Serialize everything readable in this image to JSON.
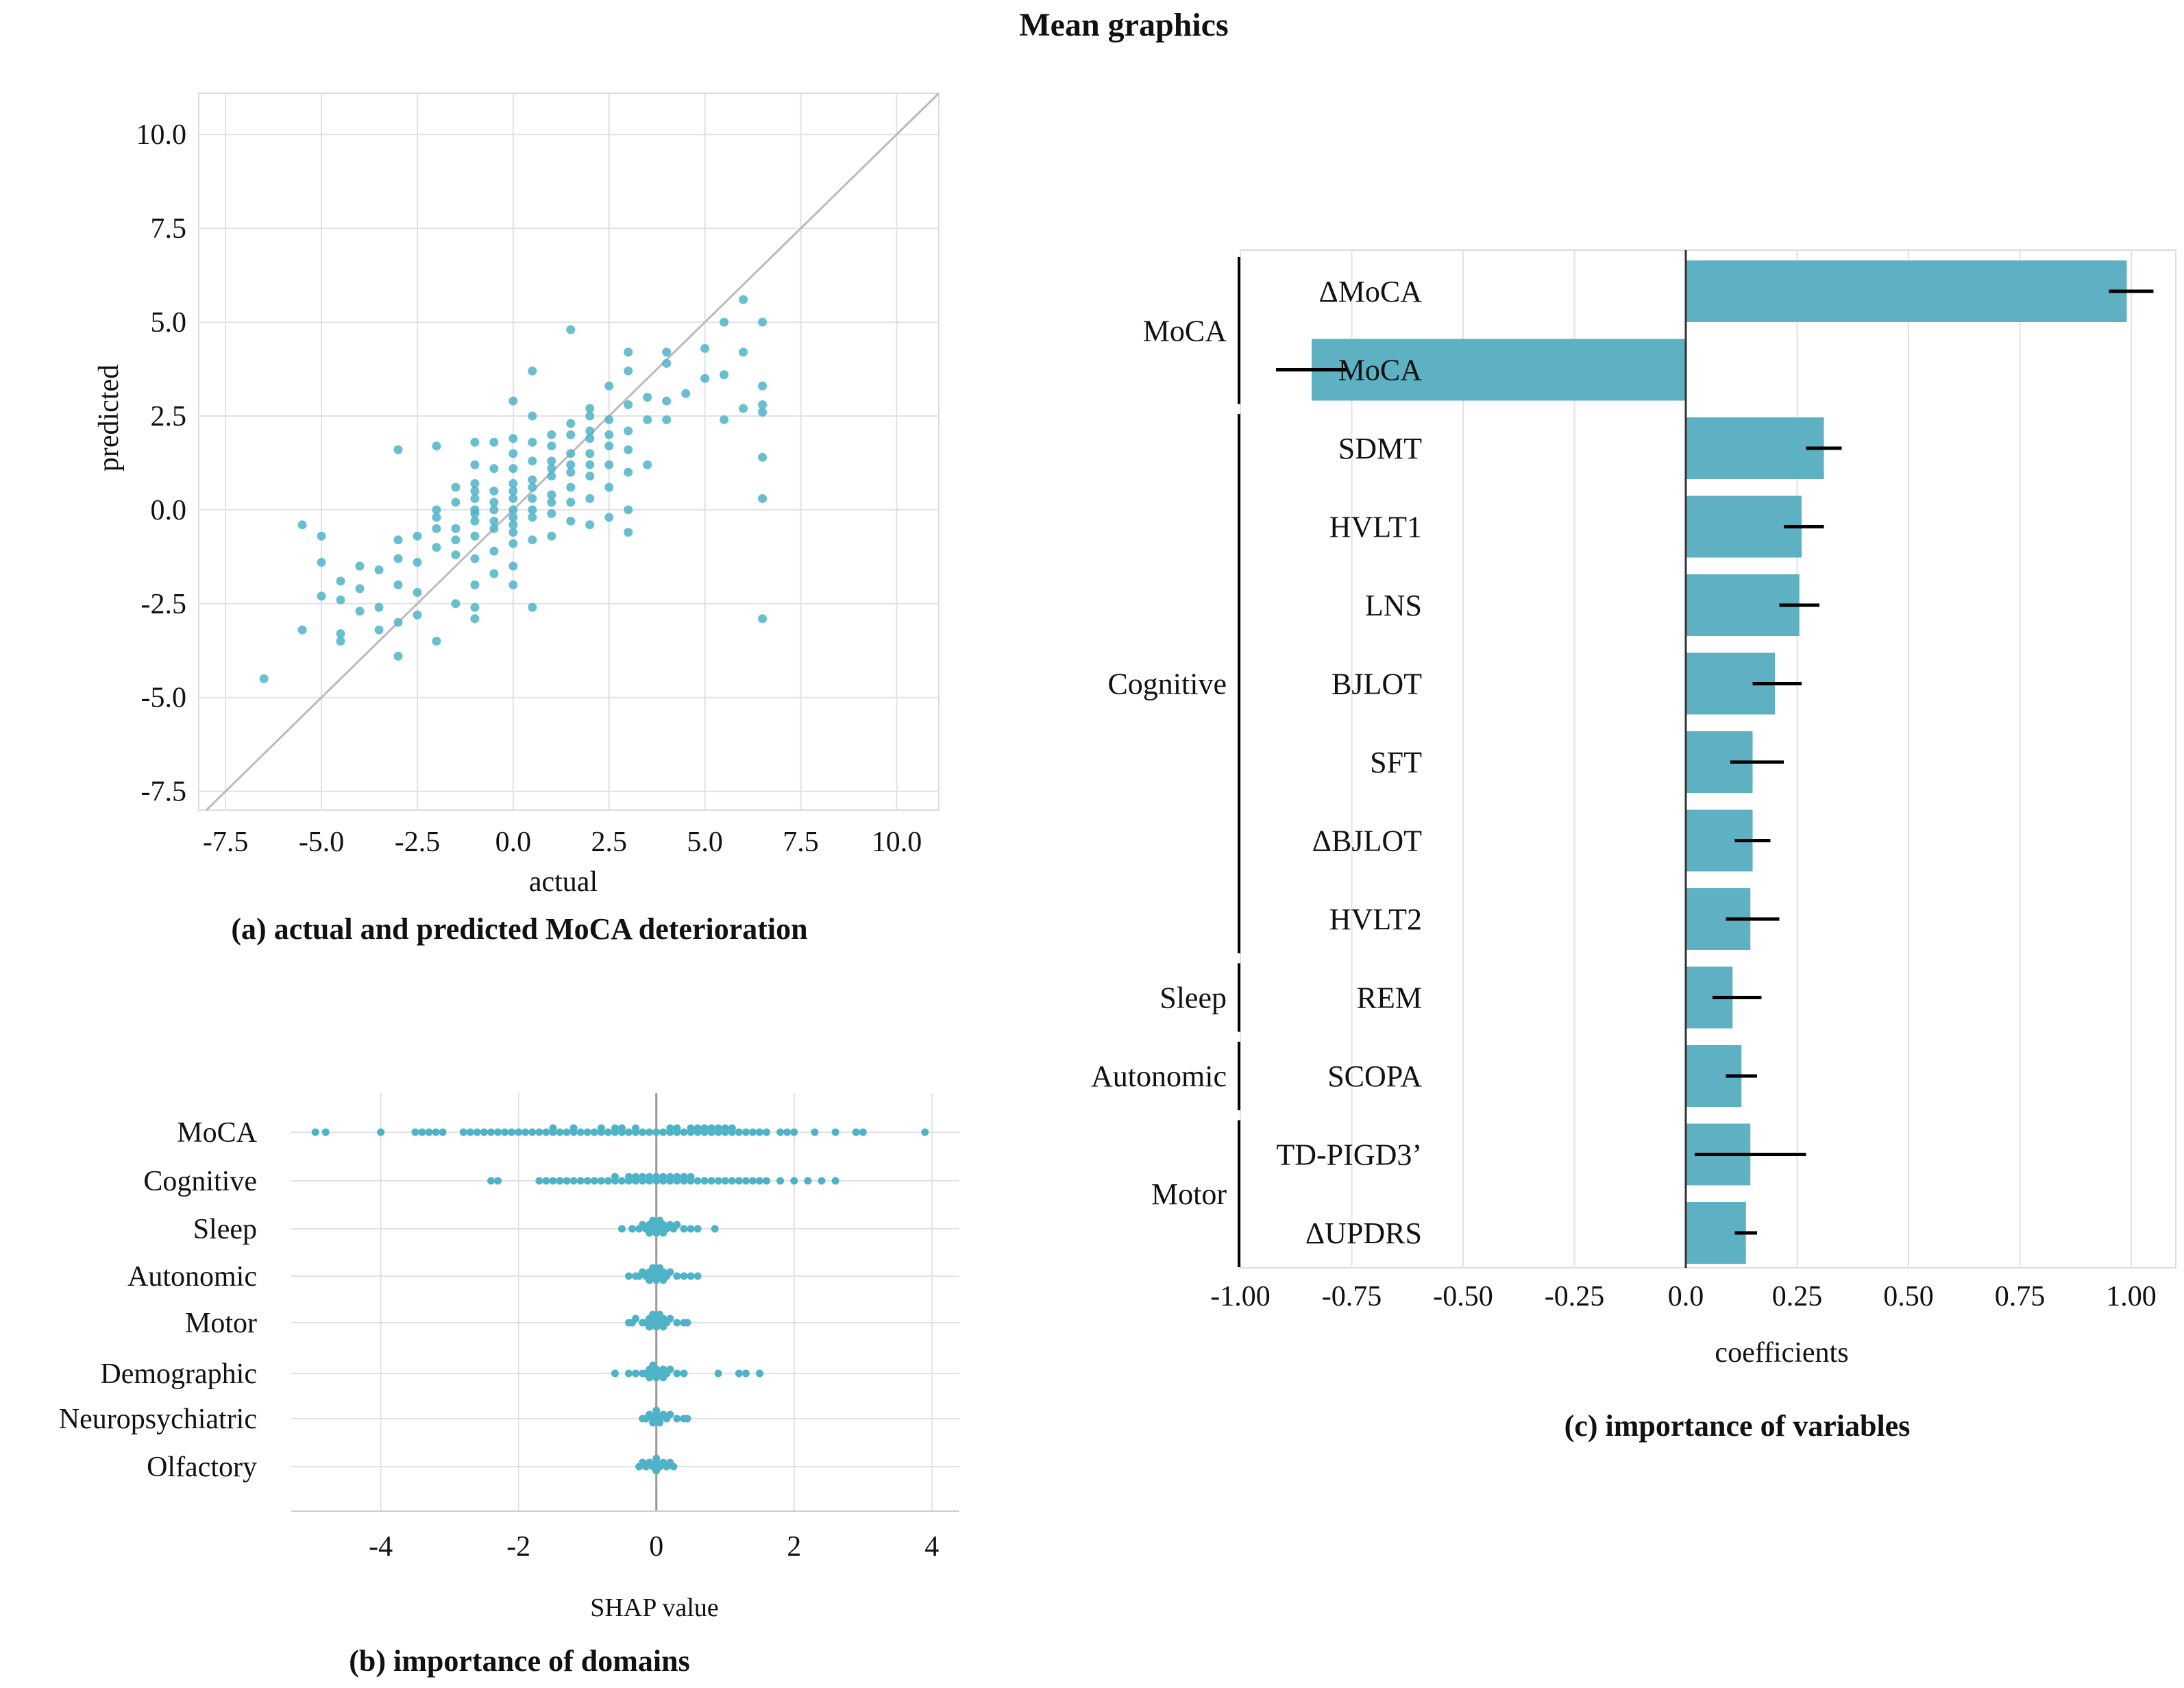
{
  "figure_title": "Mean graphics",
  "chart_data": [
    {
      "id": "a",
      "type": "scatter",
      "caption": "(a) actual and predicted MoCA deterioration",
      "xlabel": "actual",
      "ylabel": "predicted",
      "xlim": [
        -8.2,
        11.1
      ],
      "ylim": [
        -8.0,
        11.1
      ],
      "xticks": [
        "-7.5",
        "-5.0",
        "-2.5",
        "0.0",
        "2.5",
        "5.0",
        "7.5",
        "10.0"
      ],
      "yticks": [
        "-7.5",
        "-5.0",
        "-2.5",
        "0.0",
        "2.5",
        "5.0",
        "7.5",
        "10.0"
      ],
      "grid": true,
      "reference_line": "y = x",
      "color": "#4fb3c8",
      "points": [
        [
          -6.5,
          -4.5
        ],
        [
          -5.5,
          -3.2
        ],
        [
          -5.5,
          -0.4
        ],
        [
          -5,
          -0.7
        ],
        [
          -5,
          -1.4
        ],
        [
          -5,
          -2.3
        ],
        [
          -4.5,
          -2.4
        ],
        [
          -4.5,
          -3.3
        ],
        [
          -4.5,
          -3.5
        ],
        [
          -4.5,
          -1.9
        ],
        [
          -4,
          -1.5
        ],
        [
          -4,
          -2.1
        ],
        [
          -4,
          -2.7
        ],
        [
          -3.5,
          -1.6
        ],
        [
          -3.5,
          -2.6
        ],
        [
          -3.5,
          -3.2
        ],
        [
          -3,
          -2.0
        ],
        [
          -3,
          -3.0
        ],
        [
          -3,
          -3.9
        ],
        [
          -3,
          1.6
        ],
        [
          -3,
          -1.3
        ],
        [
          -3,
          -0.8
        ],
        [
          -2.5,
          -2.2
        ],
        [
          -2.5,
          -1.4
        ],
        [
          -2.5,
          -2.8
        ],
        [
          -2,
          -3.5
        ],
        [
          -2,
          0.0
        ],
        [
          -2,
          -0.5
        ],
        [
          -2,
          -1.0
        ],
        [
          -2,
          1.7
        ],
        [
          -1.5,
          0.6
        ],
        [
          -1.5,
          -0.5
        ],
        [
          -1.5,
          -1.2
        ],
        [
          -1.5,
          -2.5
        ],
        [
          -1.5,
          0.2
        ],
        [
          -1,
          0.0
        ],
        [
          -1,
          0.3
        ],
        [
          -1,
          0.7
        ],
        [
          -1,
          -0.3
        ],
        [
          -1,
          -0.7
        ],
        [
          -1,
          -1.3
        ],
        [
          -1,
          -2.0
        ],
        [
          -1,
          -2.6
        ],
        [
          -1,
          -2.9
        ],
        [
          -1,
          1.2
        ],
        [
          -1,
          1.8
        ],
        [
          -0.5,
          0.5
        ],
        [
          -0.5,
          0.0
        ],
        [
          -0.5,
          -0.5
        ],
        [
          -0.5,
          -1.1
        ],
        [
          -0.5,
          1.1
        ],
        [
          -0.5,
          1.8
        ],
        [
          -0.5,
          -1.7
        ],
        [
          0,
          0.0
        ],
        [
          0,
          0.3
        ],
        [
          0,
          0.7
        ],
        [
          0,
          1.1
        ],
        [
          0,
          1.5
        ],
        [
          0,
          -0.4
        ],
        [
          0,
          -0.9
        ],
        [
          0,
          -1.5
        ],
        [
          0,
          -2.0
        ],
        [
          0,
          2.9
        ],
        [
          0,
          -0.2
        ],
        [
          0.5,
          0.3
        ],
        [
          0.5,
          -0.2
        ],
        [
          0.5,
          0.8
        ],
        [
          0.5,
          1.3
        ],
        [
          0.5,
          -0.8
        ],
        [
          0.5,
          2.5
        ],
        [
          0.5,
          3.7
        ],
        [
          0.5,
          -2.6
        ],
        [
          0.5,
          0.0
        ],
        [
          1,
          0.4
        ],
        [
          1,
          0.9
        ],
        [
          1,
          1.3
        ],
        [
          1,
          -0.1
        ],
        [
          1,
          2.0
        ],
        [
          1,
          -0.7
        ],
        [
          1,
          1.7
        ],
        [
          1.5,
          0.6
        ],
        [
          1.5,
          1.0
        ],
        [
          1.5,
          1.5
        ],
        [
          1.5,
          2.3
        ],
        [
          1.5,
          -0.3
        ],
        [
          1.5,
          4.8
        ],
        [
          1.5,
          0.2
        ],
        [
          2,
          0.9
        ],
        [
          2,
          1.5
        ],
        [
          2,
          2.1
        ],
        [
          2,
          2.7
        ],
        [
          2,
          0.3
        ],
        [
          2,
          -0.4
        ],
        [
          2,
          1.2
        ],
        [
          2.5,
          1.2
        ],
        [
          2.5,
          1.7
        ],
        [
          2.5,
          2.4
        ],
        [
          2.5,
          3.3
        ],
        [
          2.5,
          0.6
        ],
        [
          2.5,
          -0.2
        ],
        [
          3,
          1.6
        ],
        [
          3,
          2.1
        ],
        [
          3,
          2.8
        ],
        [
          3,
          3.7
        ],
        [
          3,
          4.2
        ],
        [
          3,
          0.0
        ],
        [
          3,
          -0.6
        ],
        [
          3.5,
          1.2
        ],
        [
          3.5,
          2.4
        ],
        [
          3.5,
          3.0
        ],
        [
          4,
          2.4
        ],
        [
          4,
          3.9
        ],
        [
          4,
          4.2
        ],
        [
          4,
          2.9
        ],
        [
          4.5,
          3.1
        ],
        [
          5,
          3.5
        ],
        [
          5,
          4.3
        ],
        [
          5.5,
          2.4
        ],
        [
          5.5,
          3.6
        ],
        [
          6,
          2.7
        ],
        [
          6,
          4.2
        ],
        [
          6,
          5.6
        ],
        [
          6.5,
          5.0
        ],
        [
          6.5,
          3.3
        ],
        [
          6.5,
          2.8
        ],
        [
          6.5,
          1.4
        ],
        [
          6.5,
          0.3
        ],
        [
          6.5,
          -2.9
        ],
        [
          5.5,
          5.0
        ],
        [
          6.5,
          2.6
        ],
        [
          -0.5,
          0.2
        ],
        [
          0,
          0.5
        ],
        [
          0.5,
          0.6
        ],
        [
          1,
          1.1
        ],
        [
          -1,
          -0.1
        ],
        [
          2,
          1.9
        ],
        [
          1.5,
          1.2
        ],
        [
          -2,
          -0.2
        ],
        [
          -0.5,
          -0.3
        ],
        [
          0,
          -0.6
        ],
        [
          1,
          0.2
        ],
        [
          2.5,
          2.0
        ],
        [
          3,
          1.0
        ],
        [
          -1.5,
          -0.8
        ],
        [
          -2.5,
          -0.7
        ],
        [
          0.5,
          1.8
        ],
        [
          1.5,
          2.0
        ],
        [
          2,
          2.5
        ],
        [
          -1,
          0.5
        ],
        [
          0,
          1.9
        ]
      ]
    },
    {
      "id": "b",
      "type": "scatter",
      "subtype": "beeswarm",
      "caption": "(b) importance of domains",
      "xlabel": "SHAP value",
      "xlim": [
        -5.3,
        4.4
      ],
      "xticks": [
        -4,
        -2,
        0,
        2,
        4
      ],
      "xtick_labels": [
        "-4",
        "-2",
        "0",
        "2",
        "4"
      ],
      "grid": true,
      "color": "#4fb3c8",
      "domains": [
        {
          "name": "MoCA",
          "values": [
            -4.95,
            -4.8,
            -4.0,
            -3.5,
            -3.4,
            -3.3,
            -3.2,
            -3.1,
            -2.8,
            -2.7,
            -2.6,
            -2.5,
            -2.4,
            -2.3,
            -2.2,
            -2.1,
            -2.0,
            -1.9,
            -1.8,
            -1.7,
            -1.6,
            -1.5,
            -1.4,
            -1.3,
            -1.2,
            -1.1,
            -1.0,
            -0.9,
            -0.8,
            -0.7,
            -0.6,
            -0.5,
            -0.4,
            -0.3,
            -0.2,
            -0.1,
            0.0,
            0.1,
            0.2,
            0.3,
            0.4,
            0.5,
            0.6,
            0.7,
            0.8,
            0.9,
            1.0,
            1.1,
            1.2,
            1.3,
            1.4,
            1.5,
            1.6,
            1.8,
            1.9,
            2.0,
            2.3,
            2.6,
            2.9,
            3.0,
            3.9,
            -1.5,
            -1.2,
            -0.6,
            -0.3,
            0.3,
            0.5,
            0.7,
            0.8,
            0.9,
            1.0,
            1.1,
            -0.8,
            -0.5,
            0.2,
            0.6
          ]
        },
        {
          "name": "Cognitive",
          "values": [
            -2.4,
            -2.3,
            -1.7,
            -1.6,
            -1.5,
            -1.4,
            -1.3,
            -1.2,
            -1.1,
            -1.0,
            -0.9,
            -0.8,
            -0.7,
            -0.6,
            -0.5,
            -0.4,
            -0.3,
            -0.2,
            -0.1,
            0.0,
            0.1,
            0.2,
            0.3,
            0.4,
            0.5,
            0.6,
            0.7,
            0.8,
            0.9,
            1.0,
            1.1,
            1.2,
            1.3,
            1.4,
            1.5,
            1.6,
            1.8,
            2.0,
            2.2,
            2.4,
            2.6,
            -0.6,
            -0.4,
            -0.2,
            0.0,
            0.2,
            0.4,
            -0.3,
            0.1,
            0.3,
            0.5,
            -0.1
          ]
        },
        {
          "name": "Sleep",
          "values": [
            -0.5,
            -0.35,
            -0.25,
            -0.2,
            -0.15,
            -0.1,
            -0.05,
            0.0,
            0.05,
            0.1,
            0.15,
            0.2,
            0.25,
            0.3,
            0.4,
            0.5,
            0.6,
            0.85,
            -0.1,
            0.0,
            0.1,
            -0.05,
            0.05
          ]
        },
        {
          "name": "Autonomic",
          "values": [
            -0.4,
            -0.3,
            -0.25,
            -0.2,
            -0.15,
            -0.1,
            -0.05,
            0.0,
            0.05,
            0.1,
            0.15,
            0.2,
            0.3,
            0.4,
            0.5,
            0.6,
            -0.1,
            0.0,
            0.1,
            -0.05,
            0.05
          ]
        },
        {
          "name": "Motor",
          "values": [
            -0.4,
            -0.35,
            -0.3,
            -0.2,
            -0.15,
            -0.1,
            -0.05,
            0.0,
            0.05,
            0.1,
            0.15,
            0.2,
            0.3,
            0.4,
            0.45,
            -0.1,
            0.0,
            0.1,
            -0.05,
            0.05
          ]
        },
        {
          "name": "Demographic",
          "values": [
            -0.6,
            -0.4,
            -0.3,
            -0.2,
            -0.15,
            -0.1,
            -0.05,
            0.0,
            0.05,
            0.1,
            0.15,
            0.2,
            0.3,
            0.4,
            0.9,
            1.2,
            1.3,
            1.5,
            -0.1,
            0.0,
            0.1,
            -0.05
          ]
        },
        {
          "name": "Neuropsychiatric",
          "values": [
            -0.2,
            -0.15,
            -0.1,
            -0.05,
            0.0,
            0.05,
            0.1,
            0.15,
            0.2,
            0.3,
            0.4,
            0.45,
            -0.05,
            0.0,
            0.05
          ]
        },
        {
          "name": "Olfactory",
          "values": [
            -0.25,
            -0.2,
            -0.15,
            -0.1,
            -0.05,
            0.0,
            0.05,
            0.1,
            0.15,
            0.2,
            0.25,
            0.0,
            0.0
          ]
        }
      ]
    },
    {
      "id": "c",
      "type": "bar",
      "orientation": "horizontal",
      "caption": "(c) importance of variables",
      "xlabel": "coefficients",
      "xlim": [
        -1.0,
        1.1
      ],
      "xticks": [
        -1.0,
        -0.75,
        -0.5,
        -0.25,
        0.0,
        0.25,
        0.5,
        0.75,
        1.0
      ],
      "xtick_labels": [
        "-1.00",
        "-0.75",
        "-0.50",
        "-0.25",
        "0.0",
        "0.25",
        "0.50",
        "0.75",
        "1.00"
      ],
      "grid": true,
      "color": "#5eb0c3",
      "categories": [
        "ΔMoCA",
        "MoCA",
        "SDMT",
        "HVLT1",
        "LNS",
        "BJLOT",
        "SFT",
        "ΔBJLOT",
        "HVLT2",
        "REM",
        "SCOPA",
        "TD-PIGD3’",
        "ΔUPDRS"
      ],
      "values": [
        0.99,
        -0.84,
        0.31,
        0.26,
        0.255,
        0.2,
        0.15,
        0.15,
        0.145,
        0.105,
        0.125,
        0.145,
        0.135
      ],
      "err_low": [
        0.95,
        -0.92,
        0.27,
        0.22,
        0.21,
        0.15,
        0.1,
        0.11,
        0.09,
        0.06,
        0.09,
        0.02,
        0.11
      ],
      "err_high": [
        1.05,
        -0.76,
        0.35,
        0.31,
        0.3,
        0.26,
        0.22,
        0.19,
        0.21,
        0.17,
        0.16,
        0.27,
        0.16
      ],
      "groups": [
        {
          "name": "MoCA",
          "start": 0,
          "end": 1
        },
        {
          "name": "Cognitive",
          "start": 2,
          "end": 8
        },
        {
          "name": "Sleep",
          "start": 9,
          "end": 9
        },
        {
          "name": "Autonomic",
          "start": 10,
          "end": 10
        },
        {
          "name": "Motor",
          "start": 11,
          "end": 12
        }
      ]
    }
  ]
}
